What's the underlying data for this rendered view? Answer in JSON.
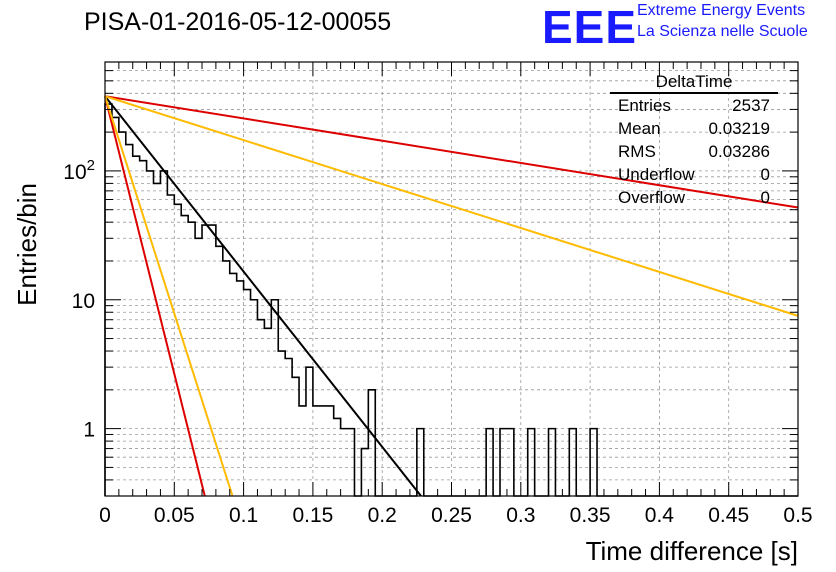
{
  "header": {
    "title": "PISA-01-2016-05-12-00055",
    "logo": "EEE",
    "org_line1": "Extreme Energy Events",
    "org_line2": "La Scienza nelle Scuole"
  },
  "stats": {
    "title": "DeltaTime",
    "rows": [
      {
        "label": "Entries",
        "value": "2537"
      },
      {
        "label": "Mean",
        "value": "0.03219"
      },
      {
        "label": "RMS",
        "value": "0.03286"
      },
      {
        "label": "Underflow",
        "value": "0"
      },
      {
        "label": "Overflow",
        "value": "0"
      }
    ]
  },
  "chart_data": {
    "type": "histogram",
    "xlabel": "Time difference [s]",
    "ylabel": "Entries/bin",
    "xlim": [
      0,
      0.5
    ],
    "ylim": [
      0.3,
      700
    ],
    "y_scale": "log",
    "grid": true,
    "x_ticks": [
      "0",
      "0.05",
      "0.1",
      "0.15",
      "0.2",
      "0.25",
      "0.3",
      "0.35",
      "0.4",
      "0.45",
      "0.5"
    ],
    "y_tick_labels": [
      {
        "value": 1,
        "label": "1"
      },
      {
        "value": 10,
        "label": "10"
      },
      {
        "value": 100,
        "label": "10^2"
      }
    ],
    "bin_width": 0.005,
    "histogram": {
      "color": "#000000",
      "values": [
        330,
        260,
        200,
        160,
        130,
        120,
        100,
        80,
        100,
        65,
        55,
        45,
        40,
        30,
        38,
        38,
        26,
        20,
        16,
        14,
        12,
        10,
        7,
        6,
        10,
        4,
        3.5,
        2.5,
        1.5,
        3,
        1.5,
        1.5,
        1.5,
        1.2,
        1,
        1,
        0.3,
        0.7,
        2,
        0.3,
        0.3,
        0.3,
        0.3,
        0.3,
        0.3,
        1,
        0.3,
        0.3,
        0.3,
        0.3,
        0.3,
        0.3,
        0.3,
        0,
        0,
        1,
        0,
        1,
        1,
        0,
        0,
        1,
        0,
        0,
        1,
        0,
        0,
        1,
        0,
        0,
        1,
        0,
        0,
        0,
        0,
        0,
        0,
        0,
        0,
        0,
        0,
        0,
        0,
        0,
        0,
        0,
        0,
        0,
        0,
        0,
        0,
        0,
        0,
        0,
        0,
        0,
        0,
        0,
        0,
        0
      ]
    },
    "curves": [
      {
        "color": "#000000",
        "points": [
          [
            0,
            380
          ],
          [
            0.228,
            0.3
          ]
        ]
      },
      {
        "color": "#dd0000",
        "points": [
          [
            0,
            380
          ],
          [
            0.5,
            52
          ]
        ]
      },
      {
        "color": "#ffbb00",
        "points": [
          [
            0,
            380
          ],
          [
            0.5,
            7.5
          ]
        ]
      },
      {
        "color": "#dd0000",
        "points": [
          [
            0,
            380
          ],
          [
            0.072,
            0.3
          ]
        ]
      },
      {
        "color": "#ffbb00",
        "points": [
          [
            0,
            380
          ],
          [
            0.092,
            0.3
          ]
        ]
      }
    ]
  }
}
